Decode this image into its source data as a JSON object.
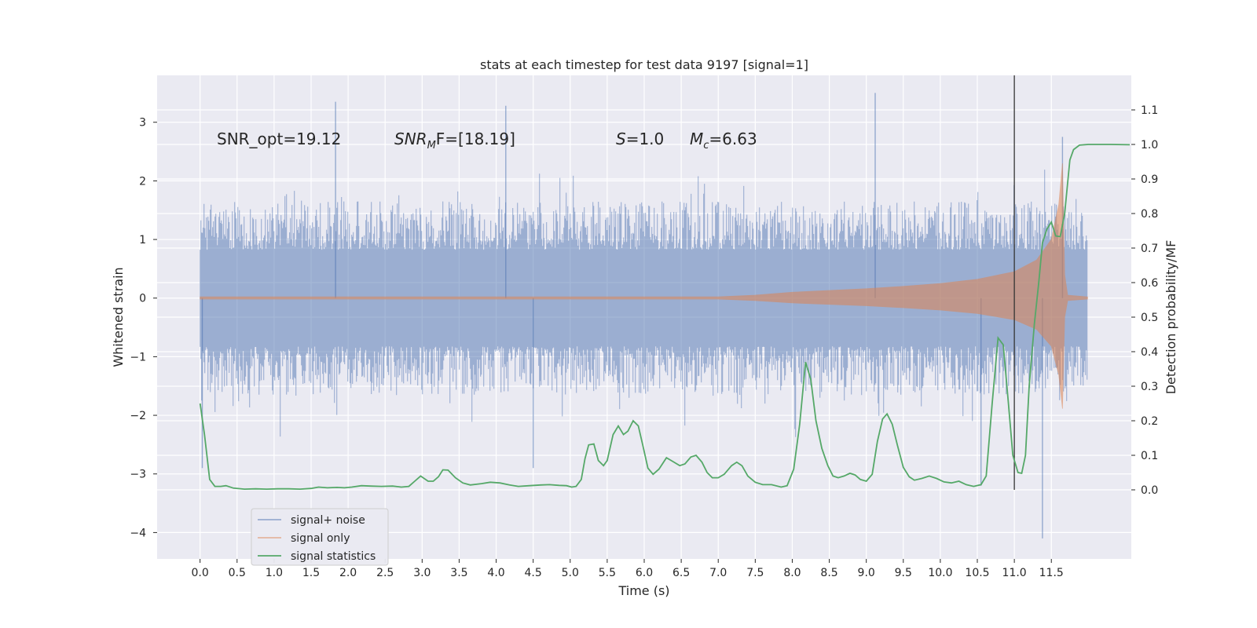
{
  "chart_data": {
    "type": "line",
    "title": "stats at each timestep for test data 9197 [signal=1]",
    "xlabel": "Time (s)",
    "ylabel": "Whitened strain",
    "ylabel_right": "Detection probability/MF",
    "xlim": [
      -0.58,
      12.58
    ],
    "ylim": [
      -4.45,
      3.8
    ],
    "ylim_right": [
      -0.2,
      1.2
    ],
    "x_ticks": [
      "0.0",
      "0.5",
      "1.0",
      "1.5",
      "2.0",
      "2.5",
      "3.0",
      "3.5",
      "4.0",
      "4.5",
      "5.0",
      "5.5",
      "6.0",
      "6.5",
      "7.0",
      "7.5",
      "8.0",
      "8.5",
      "9.0",
      "9.5",
      "10.0",
      "10.5",
      "11.0",
      "11.5"
    ],
    "x_tick_values": [
      0,
      0.5,
      1,
      1.5,
      2,
      2.5,
      3,
      3.5,
      4,
      4.5,
      5,
      5.5,
      6,
      6.5,
      7,
      7.5,
      8,
      8.5,
      9,
      9.5,
      10,
      10.5,
      11,
      11.5
    ],
    "y_ticks": [
      "−4",
      "−3",
      "−2",
      "−1",
      "0",
      "1",
      "2",
      "3"
    ],
    "y_tick_values": [
      -4,
      -3,
      -2,
      -1,
      0,
      1,
      2,
      3
    ],
    "y_ticks_right": [
      "0.0",
      "0.1",
      "0.2",
      "0.3",
      "0.4",
      "0.5",
      "0.6",
      "0.7",
      "0.8",
      "0.9",
      "1.0",
      "1.1"
    ],
    "y_tick_values_right": [
      0,
      0.1,
      0.2,
      0.3,
      0.4,
      0.5,
      0.6,
      0.7,
      0.8,
      0.9,
      1.0,
      1.1
    ],
    "annotations": {
      "snr_opt": "SNR_opt=19.12",
      "snr_mf_main": "SNR",
      "snr_mf_sub": "M",
      "snr_mf_rest": "F=[18.19]",
      "s_main": "S",
      "s_rest": "=1.0",
      "mc_main": "M",
      "mc_sub": "c",
      "mc_rest": "=6.63"
    },
    "vline_x": 11.0,
    "series": [
      {
        "name": "signal+ noise",
        "color": "#4c72b0",
        "kind": "noise-band",
        "x_range": [
          0,
          11.99
        ],
        "typical_max": 1.5,
        "typical_min": -1.5,
        "peaks": [
          {
            "x": 1.83,
            "y": 3.35
          },
          {
            "x": 4.13,
            "y": 3.28
          },
          {
            "x": 9.12,
            "y": 3.5
          },
          {
            "x": 10.55,
            "y": -3.2
          },
          {
            "x": 11.38,
            "y": -4.1
          },
          {
            "x": 11.65,
            "y": 2.75
          },
          {
            "x": 0.03,
            "y": -2.9
          },
          {
            "x": 4.5,
            "y": -2.9
          }
        ]
      },
      {
        "name": "signal only",
        "color": "#dd8452",
        "kind": "chirp",
        "x_start": 0,
        "x_merger": 11.65,
        "x_end": 11.99,
        "peak_amplitude": 2.3,
        "points": [
          {
            "x": 0,
            "amp": 0.02
          },
          {
            "x": 7.0,
            "amp": 0.02
          },
          {
            "x": 7.5,
            "amp": 0.05
          },
          {
            "x": 8.0,
            "amp": 0.1
          },
          {
            "x": 8.5,
            "amp": 0.13
          },
          {
            "x": 9.0,
            "amp": 0.16
          },
          {
            "x": 9.5,
            "amp": 0.2
          },
          {
            "x": 10.0,
            "amp": 0.25
          },
          {
            "x": 10.5,
            "amp": 0.32
          },
          {
            "x": 11.0,
            "amp": 0.45
          },
          {
            "x": 11.3,
            "amp": 0.65
          },
          {
            "x": 11.5,
            "amp": 1.0
          },
          {
            "x": 11.6,
            "amp": 1.6
          },
          {
            "x": 11.65,
            "amp": 2.3
          },
          {
            "x": 11.68,
            "amp": 0.4
          },
          {
            "x": 11.72,
            "amp": 0.05
          },
          {
            "x": 11.99,
            "amp": 0.02
          }
        ]
      },
      {
        "name": "signal statistics",
        "color": "#55a868",
        "axis": "right",
        "points": [
          [
            0.0,
            0.25
          ],
          [
            0.06,
            0.16
          ],
          [
            0.13,
            0.03
          ],
          [
            0.2,
            0.01
          ],
          [
            0.28,
            0.01
          ],
          [
            0.35,
            0.012
          ],
          [
            0.45,
            0.005
          ],
          [
            0.6,
            0.002
          ],
          [
            0.75,
            0.003
          ],
          [
            0.9,
            0.002
          ],
          [
            1.05,
            0.003
          ],
          [
            1.2,
            0.003
          ],
          [
            1.35,
            0.002
          ],
          [
            1.5,
            0.004
          ],
          [
            1.6,
            0.008
          ],
          [
            1.72,
            0.006
          ],
          [
            1.85,
            0.007
          ],
          [
            1.95,
            0.006
          ],
          [
            2.05,
            0.008
          ],
          [
            2.18,
            0.012
          ],
          [
            2.3,
            0.011
          ],
          [
            2.45,
            0.01
          ],
          [
            2.6,
            0.011
          ],
          [
            2.72,
            0.008
          ],
          [
            2.82,
            0.01
          ],
          [
            2.9,
            0.025
          ],
          [
            2.98,
            0.04
          ],
          [
            3.08,
            0.025
          ],
          [
            3.15,
            0.025
          ],
          [
            3.22,
            0.038
          ],
          [
            3.28,
            0.058
          ],
          [
            3.35,
            0.057
          ],
          [
            3.45,
            0.035
          ],
          [
            3.55,
            0.02
          ],
          [
            3.65,
            0.014
          ],
          [
            3.8,
            0.018
          ],
          [
            3.92,
            0.022
          ],
          [
            4.05,
            0.02
          ],
          [
            4.18,
            0.014
          ],
          [
            4.3,
            0.01
          ],
          [
            4.45,
            0.012
          ],
          [
            4.6,
            0.014
          ],
          [
            4.72,
            0.015
          ],
          [
            4.85,
            0.013
          ],
          [
            4.95,
            0.012
          ],
          [
            5.02,
            0.008
          ],
          [
            5.08,
            0.01
          ],
          [
            5.15,
            0.03
          ],
          [
            5.2,
            0.09
          ],
          [
            5.25,
            0.13
          ],
          [
            5.32,
            0.133
          ],
          [
            5.38,
            0.085
          ],
          [
            5.45,
            0.07
          ],
          [
            5.5,
            0.085
          ],
          [
            5.58,
            0.16
          ],
          [
            5.65,
            0.185
          ],
          [
            5.72,
            0.16
          ],
          [
            5.78,
            0.17
          ],
          [
            5.85,
            0.2
          ],
          [
            5.92,
            0.185
          ],
          [
            5.98,
            0.13
          ],
          [
            6.05,
            0.063
          ],
          [
            6.12,
            0.045
          ],
          [
            6.2,
            0.06
          ],
          [
            6.3,
            0.093
          ],
          [
            6.38,
            0.083
          ],
          [
            6.48,
            0.07
          ],
          [
            6.55,
            0.075
          ],
          [
            6.63,
            0.095
          ],
          [
            6.7,
            0.1
          ],
          [
            6.78,
            0.08
          ],
          [
            6.85,
            0.05
          ],
          [
            6.92,
            0.035
          ],
          [
            7.0,
            0.035
          ],
          [
            7.08,
            0.045
          ],
          [
            7.18,
            0.07
          ],
          [
            7.25,
            0.08
          ],
          [
            7.32,
            0.07
          ],
          [
            7.4,
            0.04
          ],
          [
            7.5,
            0.022
          ],
          [
            7.6,
            0.015
          ],
          [
            7.72,
            0.015
          ],
          [
            7.85,
            0.008
          ],
          [
            7.93,
            0.012
          ],
          [
            8.02,
            0.06
          ],
          [
            8.1,
            0.19
          ],
          [
            8.18,
            0.37
          ],
          [
            8.25,
            0.32
          ],
          [
            8.32,
            0.2
          ],
          [
            8.4,
            0.12
          ],
          [
            8.48,
            0.07
          ],
          [
            8.55,
            0.04
          ],
          [
            8.62,
            0.035
          ],
          [
            8.7,
            0.04
          ],
          [
            8.78,
            0.048
          ],
          [
            8.85,
            0.043
          ],
          [
            8.92,
            0.03
          ],
          [
            9.0,
            0.025
          ],
          [
            9.08,
            0.045
          ],
          [
            9.15,
            0.14
          ],
          [
            9.22,
            0.205
          ],
          [
            9.28,
            0.22
          ],
          [
            9.35,
            0.19
          ],
          [
            9.42,
            0.13
          ],
          [
            9.5,
            0.065
          ],
          [
            9.58,
            0.038
          ],
          [
            9.65,
            0.028
          ],
          [
            9.75,
            0.033
          ],
          [
            9.85,
            0.04
          ],
          [
            9.95,
            0.033
          ],
          [
            10.05,
            0.023
          ],
          [
            10.15,
            0.02
          ],
          [
            10.25,
            0.025
          ],
          [
            10.35,
            0.015
          ],
          [
            10.45,
            0.01
          ],
          [
            10.55,
            0.015
          ],
          [
            10.62,
            0.04
          ],
          [
            10.7,
            0.25
          ],
          [
            10.78,
            0.44
          ],
          [
            10.85,
            0.42
          ],
          [
            10.92,
            0.25
          ],
          [
            10.98,
            0.1
          ],
          [
            11.05,
            0.05
          ],
          [
            11.1,
            0.048
          ],
          [
            11.15,
            0.1
          ],
          [
            11.2,
            0.3
          ],
          [
            11.27,
            0.48
          ],
          [
            11.33,
            0.6
          ],
          [
            11.38,
            0.715
          ],
          [
            11.44,
            0.755
          ],
          [
            11.5,
            0.775
          ],
          [
            11.56,
            0.735
          ],
          [
            11.62,
            0.733
          ],
          [
            11.68,
            0.8
          ],
          [
            11.75,
            0.955
          ],
          [
            11.8,
            0.985
          ],
          [
            11.88,
            0.998
          ],
          [
            12.0,
            1.0
          ],
          [
            12.3,
            1.0
          ],
          [
            12.56,
            0.999
          ]
        ]
      }
    ],
    "legend": {
      "position": "lower-left",
      "entries": [
        "signal+ noise",
        "signal only",
        "signal statistics"
      ]
    }
  }
}
